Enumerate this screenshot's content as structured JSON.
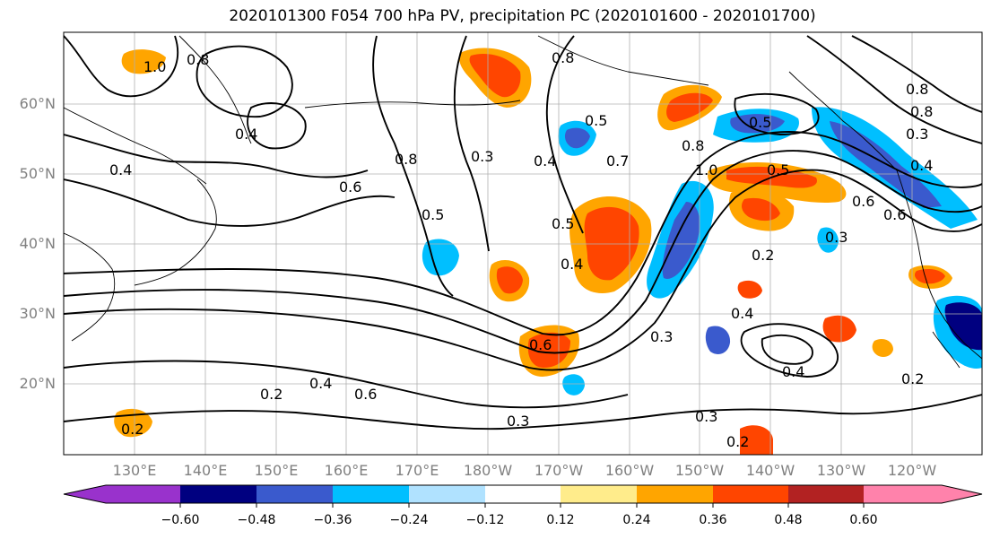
{
  "title": "2020101300 F054 700 hPa PV, precipitation PC (2020101600 - 2020101700)",
  "lat_labels": [
    "60°N",
    "50°N",
    "40°N",
    "30°N",
    "20°N"
  ],
  "lon_labels": [
    "130°E",
    "140°E",
    "150°E",
    "160°E",
    "170°E",
    "180°W",
    "170°W",
    "160°W",
    "150°W",
    "140°W",
    "130°W",
    "120°W"
  ],
  "colorbar": {
    "ticks": [
      "−0.60",
      "−0.48",
      "−0.36",
      "−0.24",
      "−0.12",
      "0.12",
      "0.24",
      "0.36",
      "0.48",
      "0.60"
    ],
    "colors": [
      "#9932cc",
      "#000080",
      "#3a5acd",
      "#00bfff",
      "#b0e2ff",
      "#ffffff",
      "#ffec8b",
      "#ffa500",
      "#ff4500",
      "#b22222",
      "#ff82ab"
    ]
  },
  "contour_labels": [
    "0.8",
    "1.0",
    "0.4",
    "0.8",
    "0.6",
    "0.4",
    "0.8",
    "0.3",
    "0.5",
    "0.4",
    "0.5",
    "0.4",
    "0.7",
    "1.0",
    "0.5",
    "0.8",
    "0.5",
    "0.6",
    "0.2",
    "0.4",
    "0.6",
    "0.3",
    "0.3",
    "0.5",
    "0.2",
    "0.4",
    "0.3",
    "0.2",
    "0.3",
    "0.2",
    "0.6",
    "0.8",
    "0.4",
    "0.6",
    "0.8",
    "0.3",
    "0.4",
    "0.2"
  ]
}
